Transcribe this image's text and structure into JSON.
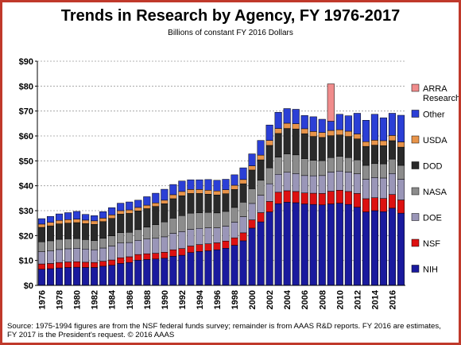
{
  "header": {
    "title": "Trends in Research by Agency, FY 1976-2017",
    "subtitle": "Billions of constant FY 2016 Dollars"
  },
  "footer": {
    "line1": "Source: 1975-1994 figures are from the NSF federal funds survey; remainder is from AAAS R&D reports. FY 2016 are estimates,",
    "line2": "FY 2017 is the President's request. © 2016 AAAS"
  },
  "colors": {
    "NIH": "#1a1a9e",
    "NSF": "#dd1111",
    "DOE": "#9a96b8",
    "NASA": "#8c8c8c",
    "DOD": "#2a2a2a",
    "USDA": "#e8944a",
    "Other": "#2b3fd6",
    "ARRA Research": "#f08c8c",
    "frame": "#c0392b"
  },
  "chart_data": {
    "type": "bar",
    "stacked": true,
    "title": "Trends in Research by Agency, FY 1976-2017",
    "subtitle": "Billions of constant FY 2016 Dollars",
    "y_unit_prefix": "$",
    "ylim": [
      0,
      90
    ],
    "yticks": [
      0,
      10,
      20,
      30,
      40,
      50,
      60,
      70,
      80,
      90
    ],
    "grid": "horizontal",
    "legend_position": "right",
    "categories": [
      "1976",
      "1977",
      "1978",
      "1979",
      "1980",
      "1981",
      "1982",
      "1983",
      "1984",
      "1985",
      "1986",
      "1987",
      "1988",
      "1989",
      "1990",
      "1991",
      "1992",
      "1993",
      "1994",
      "1995",
      "1996",
      "1997",
      "1998",
      "1999",
      "2000",
      "2001",
      "2002",
      "2003",
      "2004",
      "2005",
      "2006",
      "2007",
      "2008",
      "2009",
      "2010",
      "2011",
      "2012",
      "2013",
      "2014",
      "2015",
      "2016",
      "2017"
    ],
    "x_tick_labels": [
      "1976",
      "1978",
      "1980",
      "1982",
      "1984",
      "1986",
      "1988",
      "1990",
      "1992",
      "1994",
      "1996",
      "1998",
      "2000",
      "2002",
      "2004",
      "2006",
      "2008",
      "2010",
      "2012",
      "2014",
      "2016"
    ],
    "series": [
      {
        "name": "NIH",
        "values": [
          6.5,
          6.7,
          7.0,
          7.2,
          7.3,
          7.2,
          7.2,
          7.7,
          8.1,
          8.8,
          9.2,
          10.1,
          10.4,
          10.6,
          10.9,
          11.7,
          12.1,
          13.2,
          13.6,
          13.9,
          14.3,
          14.9,
          16.1,
          17.9,
          23.0,
          25.5,
          29.5,
          32.8,
          33.4,
          33.2,
          32.7,
          32.5,
          32.3,
          32.7,
          33.0,
          32.5,
          31.4,
          29.5,
          30.0,
          29.6,
          31.0,
          29.0
        ]
      },
      {
        "name": "NSF",
        "values": [
          2.1,
          2.1,
          2.2,
          2.2,
          2.2,
          2.1,
          2.0,
          2.0,
          2.1,
          2.3,
          2.3,
          2.3,
          2.3,
          2.3,
          2.4,
          2.6,
          2.7,
          2.6,
          2.8,
          2.8,
          2.8,
          2.9,
          3.0,
          3.2,
          3.3,
          3.7,
          4.2,
          4.6,
          4.6,
          4.5,
          4.4,
          4.5,
          4.6,
          5.1,
          5.2,
          5.2,
          5.5,
          5.3,
          5.2,
          5.3,
          5.5,
          5.3
        ]
      },
      {
        "name": "DOE",
        "values": [
          4.9,
          5.0,
          5.2,
          5.3,
          5.4,
          5.3,
          5.1,
          5.3,
          5.6,
          5.9,
          5.7,
          5.7,
          5.9,
          6.0,
          6.2,
          6.6,
          6.8,
          6.7,
          6.5,
          6.4,
          6.0,
          6.0,
          6.3,
          6.5,
          6.6,
          7.0,
          7.1,
          7.2,
          7.4,
          7.2,
          7.0,
          7.0,
          7.2,
          7.7,
          7.7,
          7.8,
          7.9,
          7.8,
          8.1,
          8.2,
          8.4,
          8.3
        ]
      },
      {
        "name": "NASA",
        "values": [
          4.0,
          4.1,
          4.1,
          4.0,
          3.9,
          3.8,
          3.7,
          3.9,
          4.1,
          4.2,
          4.1,
          4.3,
          4.8,
          5.5,
          6.0,
          6.1,
          6.4,
          6.5,
          6.3,
          6.2,
          6.0,
          5.9,
          5.9,
          5.8,
          5.9,
          6.0,
          6.4,
          6.9,
          7.4,
          7.5,
          6.8,
          6.2,
          6.0,
          5.8,
          5.9,
          5.8,
          5.6,
          5.6,
          5.6,
          5.7,
          5.8,
          5.6
        ]
      },
      {
        "name": "DOD",
        "values": [
          5.8,
          6.0,
          6.2,
          6.3,
          6.4,
          6.4,
          6.5,
          6.7,
          7.0,
          7.4,
          7.6,
          7.5,
          7.4,
          7.3,
          7.3,
          7.8,
          8.0,
          7.9,
          7.7,
          7.3,
          7.2,
          7.1,
          7.2,
          7.4,
          7.5,
          8.2,
          9.0,
          9.5,
          10.2,
          10.4,
          10.0,
          9.6,
          9.3,
          8.8,
          8.6,
          8.5,
          8.4,
          7.6,
          7.4,
          7.3,
          7.4,
          7.3
        ]
      },
      {
        "name": "USDA",
        "values": [
          1.3,
          1.4,
          1.4,
          1.4,
          1.4,
          1.4,
          1.4,
          1.4,
          1.4,
          1.4,
          1.4,
          1.4,
          1.4,
          1.4,
          1.4,
          1.6,
          1.7,
          1.6,
          1.6,
          1.6,
          1.6,
          1.6,
          1.7,
          1.7,
          1.7,
          1.9,
          2.0,
          2.0,
          2.1,
          2.1,
          2.0,
          2.0,
          2.0,
          2.1,
          2.1,
          2.1,
          2.0,
          1.9,
          2.0,
          2.0,
          2.1,
          2.1
        ]
      },
      {
        "name": "Other",
        "values": [
          2.2,
          2.4,
          2.6,
          2.8,
          3.1,
          2.3,
          2.1,
          2.6,
          2.9,
          3.0,
          3.2,
          2.9,
          3.4,
          3.9,
          4.4,
          4.1,
          4.2,
          3.9,
          3.9,
          4.3,
          4.3,
          4.2,
          4.2,
          4.7,
          4.8,
          5.9,
          6.2,
          6.5,
          5.9,
          5.8,
          5.3,
          5.9,
          5.3,
          3.7,
          6.2,
          6.2,
          8.3,
          8.6,
          10.4,
          9.2,
          8.9,
          10.7
        ]
      },
      {
        "name": "ARRA Research",
        "values": [
          0,
          0,
          0,
          0,
          0,
          0,
          0,
          0,
          0,
          0,
          0,
          0,
          0,
          0,
          0,
          0,
          0,
          0,
          0,
          0,
          0,
          0,
          0,
          0,
          0,
          0,
          0,
          0,
          0,
          0,
          0,
          0,
          0,
          15.0,
          0,
          0,
          0,
          0,
          0,
          0,
          0,
          0
        ]
      }
    ]
  }
}
